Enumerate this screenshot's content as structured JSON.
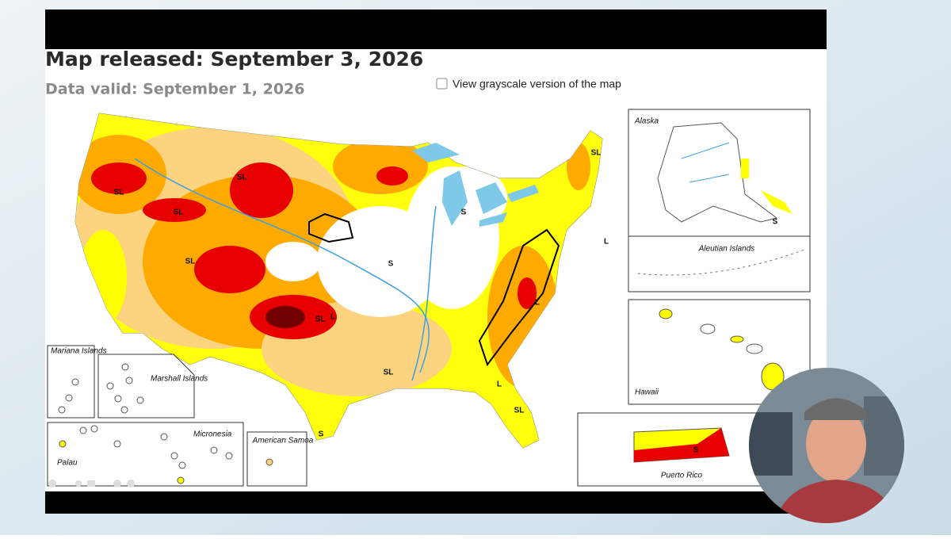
{
  "header": {
    "released": "Map released: September 3, 2026",
    "valid": "Data valid: September 1, 2026",
    "grayscale_option": "View grayscale version of the map"
  },
  "insets": {
    "alaska": "Alaska",
    "aleutian": "Aleutian Islands",
    "hawaii": "Hawaii",
    "puerto_rico": "Puerto Rico",
    "mariana": "Mariana Islands",
    "marshall": "Marshall Islands",
    "micronesia": "Micronesia",
    "palau": "Palau",
    "samoa": "American Samoa"
  },
  "map_labels": [
    "SL",
    "SL",
    "SL",
    "SL",
    "SL",
    "SL",
    "S",
    "S",
    "L",
    "L",
    "L",
    "SL",
    "SL",
    "L",
    "S",
    "S",
    "S"
  ]
}
